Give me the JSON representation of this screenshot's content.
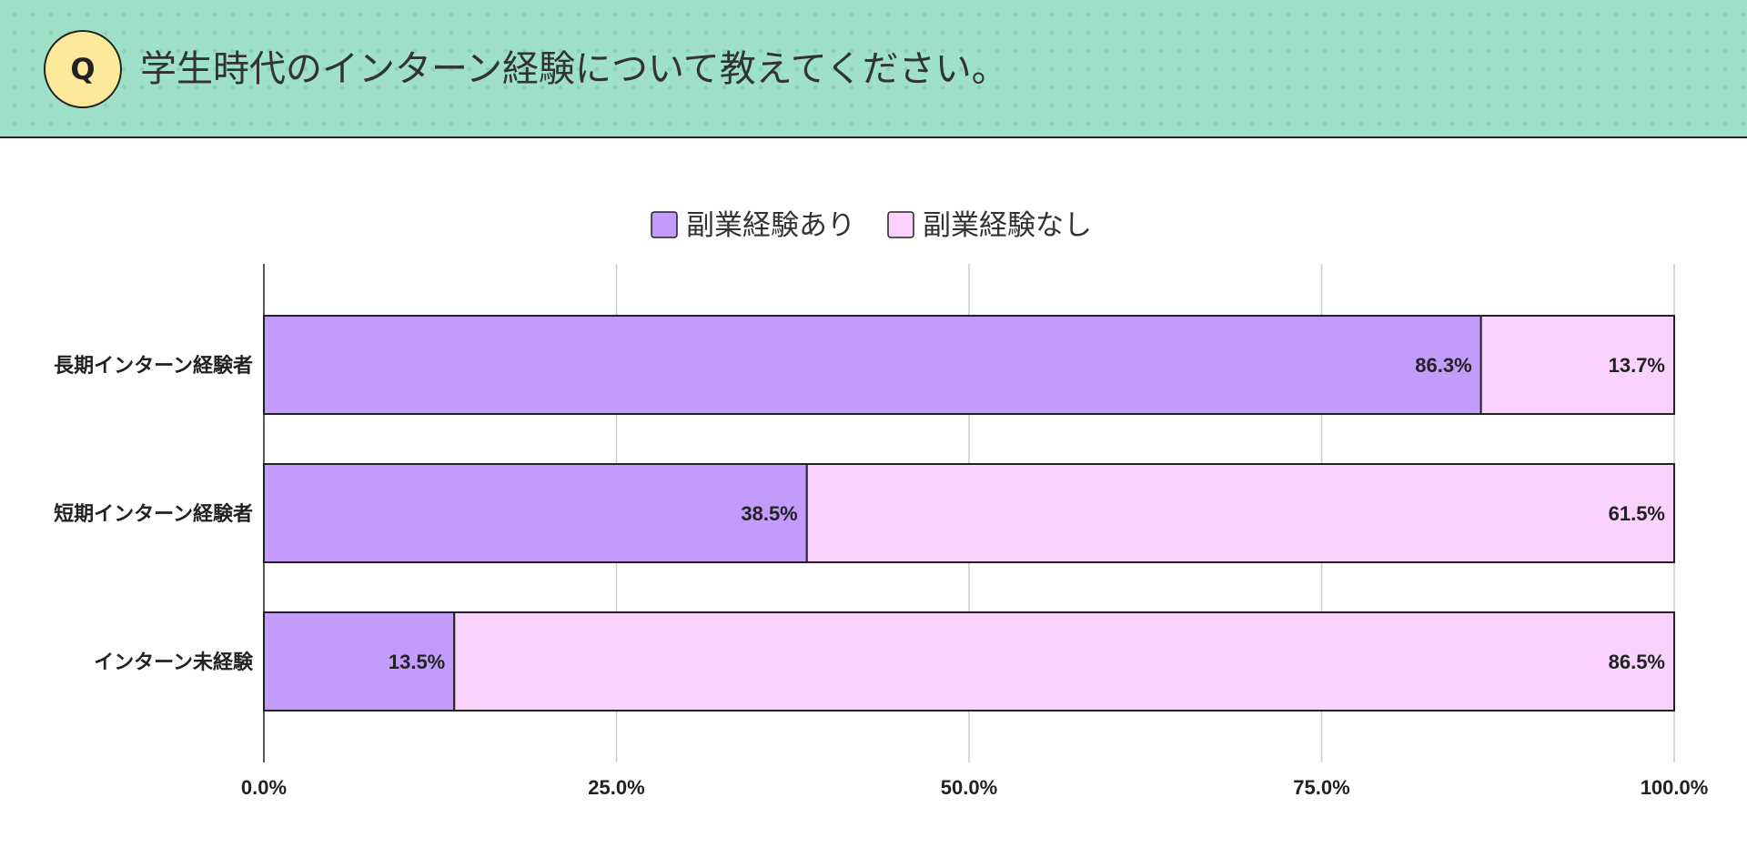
{
  "header": {
    "badge": "Q",
    "title": "学生時代のインターン経験について教えてください。"
  },
  "colors": {
    "header_bg": "#9ee0c8",
    "badge_bg": "#fde99a",
    "series_1": "#c39bfc",
    "series_2": "#f9d2fd",
    "grid": "#cccccc",
    "text": "#222222"
  },
  "chart_data": {
    "type": "bar",
    "orientation": "horizontal",
    "stacked": true,
    "categories": [
      "長期インターン経験者",
      "短期インターン経験者",
      "インターン未経験"
    ],
    "series": [
      {
        "name": "副業経験あり",
        "values": [
          86.3,
          38.5,
          13.5
        ],
        "labels": [
          "86.3%",
          "38.5%",
          "13.5%"
        ]
      },
      {
        "name": "副業経験なし",
        "values": [
          13.7,
          61.5,
          86.5
        ],
        "labels": [
          "13.7%",
          "61.5%",
          "86.5%"
        ]
      }
    ],
    "xlim": [
      0,
      100
    ],
    "xticks": [
      0,
      25,
      50,
      75,
      100
    ],
    "xtick_labels": [
      "0.0%",
      "25.0%",
      "50.0%",
      "75.0%",
      "100.0%"
    ],
    "grid": true,
    "legend_position": "top-center"
  }
}
